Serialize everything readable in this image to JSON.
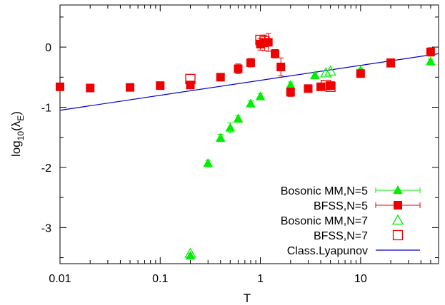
{
  "chart_data": {
    "type": "scatter",
    "xlabel": "T",
    "ylabel_parts": {
      "base": "log",
      "sub": "10",
      "open": "(λ",
      "sub2": "E",
      "close": ")"
    },
    "xscale": "log",
    "xlim": [
      0.01,
      60
    ],
    "ylim": [
      -3.6,
      0.7
    ],
    "x_ticks": [
      {
        "value": 0.01,
        "label": "0.01"
      },
      {
        "value": 0.1,
        "label": "0.1"
      },
      {
        "value": 1,
        "label": "1"
      },
      {
        "value": 10,
        "label": "10"
      }
    ],
    "y_ticks": [
      {
        "value": 0,
        "label": "0"
      },
      {
        "value": -1,
        "label": "-1"
      },
      {
        "value": -2,
        "label": "-2"
      },
      {
        "value": -3,
        "label": "-3"
      }
    ],
    "grid": false,
    "legend_position": "bottom-right",
    "series": [
      {
        "name": "Bosonic MM,N=5",
        "marker": "filled-triangle",
        "color": "#00ee00",
        "errorbars": true,
        "points": [
          {
            "x": 0.2,
            "y": -3.47,
            "err": 0.04
          },
          {
            "x": 0.3,
            "y": -1.93,
            "err": 0.05
          },
          {
            "x": 0.4,
            "y": -1.51,
            "err": 0.06
          },
          {
            "x": 0.5,
            "y": -1.34,
            "err": 0.08
          },
          {
            "x": 0.6,
            "y": -1.19,
            "err": 0.06
          },
          {
            "x": 0.8,
            "y": -0.94,
            "err": 0.05
          },
          {
            "x": 1.0,
            "y": -0.82,
            "err": 0.05
          },
          {
            "x": 2.0,
            "y": -0.63,
            "err": 0.05
          },
          {
            "x": 3.5,
            "y": -0.47,
            "err": 0.04
          },
          {
            "x": 10.0,
            "y": -0.39,
            "err": 0.04
          },
          {
            "x": 20.0,
            "y": -0.28,
            "err": 0.04
          },
          {
            "x": 50.0,
            "y": -0.24,
            "err": 0.04
          }
        ]
      },
      {
        "name": "BFSS,N=5",
        "marker": "filled-square",
        "color": "#ee0000",
        "errorbars": true,
        "points": [
          {
            "x": 0.01,
            "y": -0.66,
            "err": 0.05
          },
          {
            "x": 0.02,
            "y": -0.68,
            "err": 0.05
          },
          {
            "x": 0.05,
            "y": -0.67,
            "err": 0.05
          },
          {
            "x": 0.1,
            "y": -0.64,
            "err": 0.05
          },
          {
            "x": 0.2,
            "y": -0.63,
            "err": 0.06
          },
          {
            "x": 0.4,
            "y": -0.5,
            "err": 0.06
          },
          {
            "x": 0.6,
            "y": -0.36,
            "err": 0.08
          },
          {
            "x": 0.8,
            "y": -0.26,
            "err": 0.07
          },
          {
            "x": 1.0,
            "y": 0.05,
            "err": 0.1
          },
          {
            "x": 1.1,
            "y": 0.07,
            "err": 0.13
          },
          {
            "x": 1.2,
            "y": 0.08,
            "err": 0.15
          },
          {
            "x": 1.4,
            "y": -0.11,
            "err": 0.07
          },
          {
            "x": 1.6,
            "y": -0.33,
            "err": 0.15
          },
          {
            "x": 2.0,
            "y": -0.75,
            "err": 0.07
          },
          {
            "x": 3.0,
            "y": -0.69,
            "err": 0.05
          },
          {
            "x": 4.0,
            "y": -0.66,
            "err": 0.05
          },
          {
            "x": 5.0,
            "y": -0.64,
            "err": 0.05
          },
          {
            "x": 10.0,
            "y": -0.44,
            "err": 0.06
          },
          {
            "x": 20.0,
            "y": -0.26,
            "err": 0.05
          },
          {
            "x": 50.0,
            "y": -0.08,
            "err": 0.07
          }
        ]
      },
      {
        "name": "Bosonic MM,N=7",
        "marker": "open-triangle",
        "color": "#00ee00",
        "errorbars": false,
        "points": [
          {
            "x": 0.2,
            "y": -3.43
          },
          {
            "x": 4.5,
            "y": -0.43
          },
          {
            "x": 5.0,
            "y": -0.4
          }
        ]
      },
      {
        "name": "BFSS,N=7",
        "marker": "open-square",
        "color": "#ee0000",
        "errorbars": false,
        "points": [
          {
            "x": 0.2,
            "y": -0.53
          },
          {
            "x": 1.0,
            "y": 0.12
          },
          {
            "x": 1.1,
            "y": 0.1
          },
          {
            "x": 4.5,
            "y": -0.63
          },
          {
            "x": 5.0,
            "y": -0.66
          }
        ]
      },
      {
        "name": "Class.Lyapunov",
        "marker": "line",
        "color": "#0000cc",
        "line_points": [
          {
            "x": 0.01,
            "y": -1.05
          },
          {
            "x": 60,
            "y": -0.11
          }
        ]
      }
    ]
  }
}
